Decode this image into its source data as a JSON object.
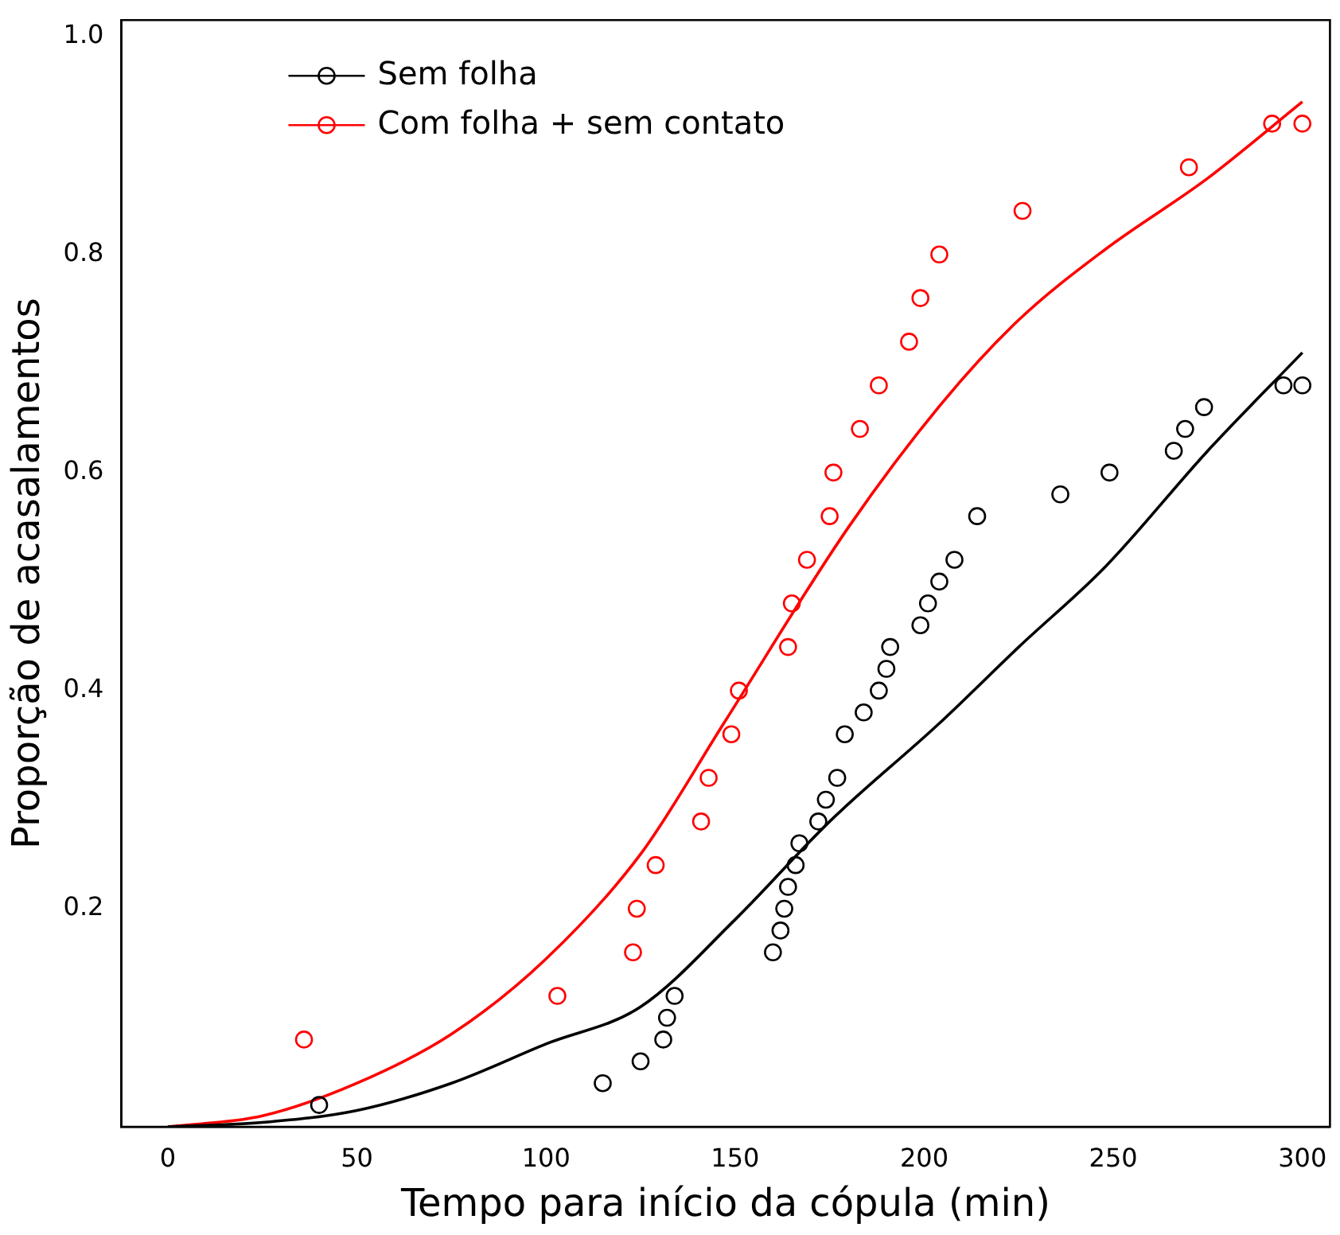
{
  "chart_data": {
    "type": "scatter",
    "xlabel": "Tempo para início da cópula (min)",
    "ylabel": "Proporção de acasalamentos",
    "xlim": [
      -12.3,
      307.3
    ],
    "ylim": [
      0,
      1.015
    ],
    "xticks": [
      0,
      50,
      100,
      150,
      200,
      250,
      300
    ],
    "yticks": [
      0.2,
      0.4,
      0.6,
      0.8,
      {
        "value": 1,
        "label": "1.0"
      }
    ],
    "grid": false,
    "legend": "top left",
    "series": [
      {
        "name": "Sem folha",
        "color": "#000000",
        "marker": "circle",
        "x": [
          40,
          115,
          125,
          131,
          132,
          134,
          160,
          162,
          163,
          164,
          166,
          167,
          172,
          174,
          177,
          179,
          184,
          188,
          190,
          191,
          199,
          201,
          204,
          208,
          214,
          236,
          249,
          266,
          269,
          274,
          295,
          300
        ],
        "values": [
          0.02,
          0.04,
          0.06,
          0.08,
          0.1,
          0.12,
          0.16,
          0.18,
          0.2,
          0.22,
          0.24,
          0.26,
          0.28,
          0.3,
          0.32,
          0.36,
          0.38,
          0.4,
          0.42,
          0.44,
          0.46,
          0.48,
          0.5,
          0.52,
          0.56,
          0.58,
          0.6,
          0.62,
          0.64,
          0.66,
          0.68,
          0.68
        ]
      },
      {
        "name": "Com folha + sem contato",
        "color": "#ff0000",
        "marker": "circle",
        "x": [
          36,
          103,
          123,
          124,
          129,
          141,
          143,
          149,
          151,
          164,
          165,
          169,
          175,
          176,
          183,
          188,
          196,
          199,
          204,
          226,
          270,
          292,
          300
        ],
        "values": [
          0.08,
          0.12,
          0.16,
          0.2,
          0.24,
          0.28,
          0.32,
          0.36,
          0.4,
          0.44,
          0.48,
          0.52,
          0.56,
          0.6,
          0.64,
          0.68,
          0.72,
          0.76,
          0.8,
          0.84,
          0.88,
          0.92,
          0.92
        ]
      },
      {
        "type": "line",
        "color": "#000000",
        "marker": "none",
        "x": [
          0,
          25,
          50,
          75,
          100,
          125,
          150,
          175,
          204,
          225,
          248,
          275,
          300
        ],
        "values": [
          0,
          0.004,
          0.015,
          0.04,
          0.076,
          0.11,
          0.19,
          0.28,
          0.37,
          0.44,
          0.514,
          0.62,
          0.71
        ]
      },
      {
        "type": "line",
        "color": "#ff0000",
        "marker": "none",
        "x": [
          0,
          25,
          50,
          75,
          100,
          125,
          147,
          180,
          205,
          225,
          248,
          275,
          300
        ],
        "values": [
          0,
          0.01,
          0.04,
          0.085,
          0.154,
          0.25,
          0.37,
          0.55,
          0.665,
          0.74,
          0.805,
          0.87,
          0.94
        ]
      }
    ]
  }
}
